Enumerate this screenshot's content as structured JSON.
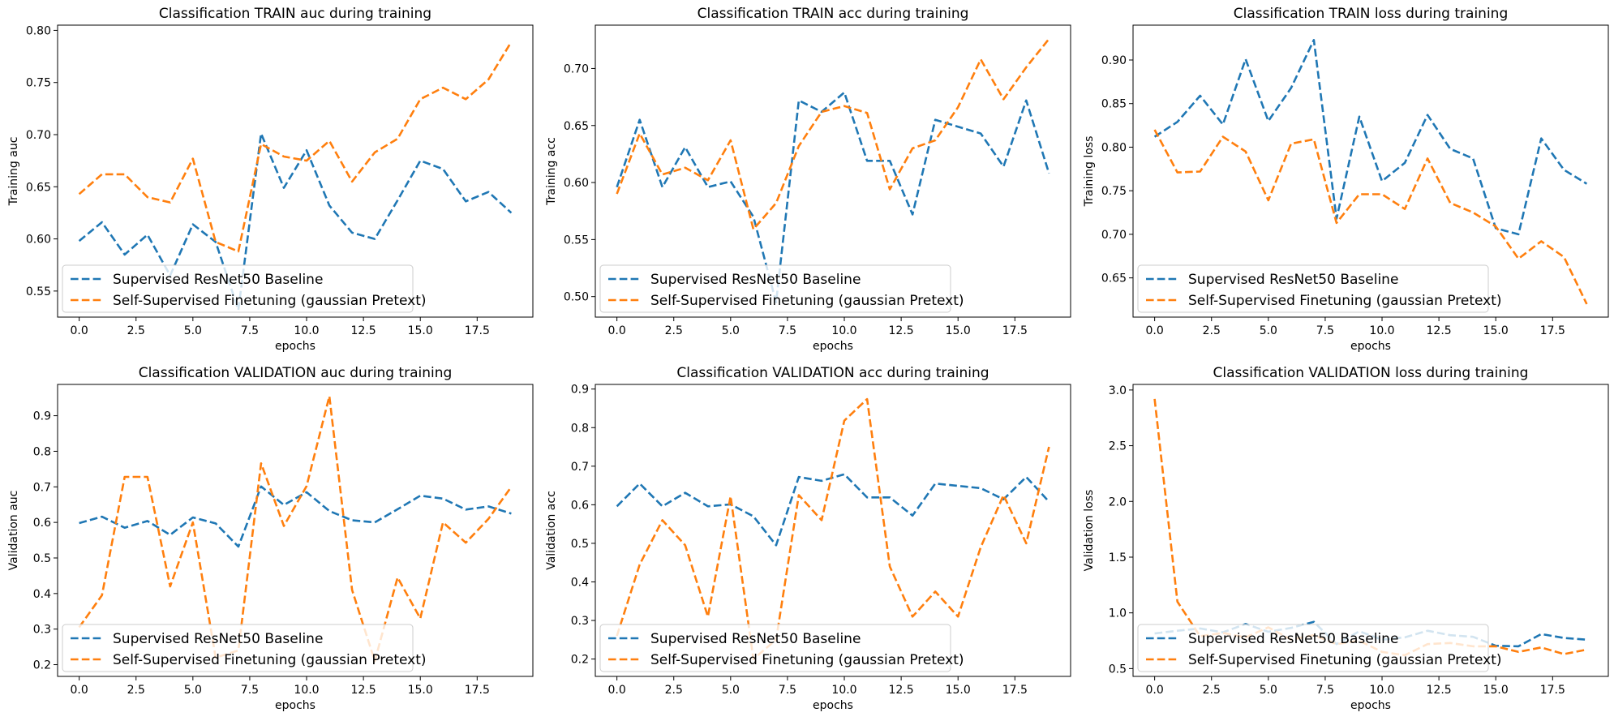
{
  "colors": {
    "baseline": "#1f77b4",
    "ssl": "#ff7f0e"
  },
  "legend": {
    "entries": [
      "Supervised ResNet50 Baseline",
      "Self-Supervised Finetuning (gaussian Pretext)"
    ],
    "placement": "lower-left"
  },
  "chart_data": [
    {
      "type": "line",
      "title": "Classification TRAIN auc during training",
      "xlabel": "epochs",
      "ylabel": "Training auc",
      "xlim": [
        -0.95,
        19.95
      ],
      "ylim": [
        0.525,
        0.805
      ],
      "xticks": [
        "0.0",
        "2.5",
        "5.0",
        "7.5",
        "10.0",
        "12.5",
        "15.0",
        "17.5"
      ],
      "xtick_values": [
        0,
        2.5,
        5,
        7.5,
        10,
        12.5,
        15,
        17.5
      ],
      "yticks": [
        "0.55",
        "0.60",
        "0.65",
        "0.70",
        "0.75",
        "0.80"
      ],
      "ytick_values": [
        0.55,
        0.6,
        0.65,
        0.7,
        0.75,
        0.8
      ],
      "x": [
        0,
        1,
        2,
        3,
        4,
        5,
        6,
        7,
        8,
        9,
        10,
        11,
        12,
        13,
        14,
        15,
        16,
        17,
        18,
        19
      ],
      "series": [
        {
          "name": "Supervised ResNet50 Baseline",
          "values": [
            0.598,
            0.616,
            0.585,
            0.604,
            0.565,
            0.614,
            0.597,
            0.532,
            0.701,
            0.649,
            0.685,
            0.632,
            0.606,
            0.6,
            0.637,
            0.675,
            0.667,
            0.636,
            0.645,
            0.625
          ]
        },
        {
          "name": "Self-Supervised Finetuning (gaussian Pretext)",
          "values": [
            0.643,
            0.662,
            0.662,
            0.64,
            0.635,
            0.677,
            0.597,
            0.588,
            0.691,
            0.679,
            0.675,
            0.694,
            0.655,
            0.683,
            0.696,
            0.734,
            0.745,
            0.734,
            0.753,
            0.789
          ]
        }
      ]
    },
    {
      "type": "line",
      "title": "Classification TRAIN acc during training",
      "xlabel": "epochs",
      "ylabel": "Training acc",
      "xlim": [
        -0.95,
        19.95
      ],
      "ylim": [
        0.482,
        0.738
      ],
      "xticks": [
        "0.0",
        "2.5",
        "5.0",
        "7.5",
        "10.0",
        "12.5",
        "15.0",
        "17.5"
      ],
      "xtick_values": [
        0,
        2.5,
        5,
        7.5,
        10,
        12.5,
        15,
        17.5
      ],
      "yticks": [
        "0.50",
        "0.55",
        "0.60",
        "0.65",
        "0.70"
      ],
      "ytick_values": [
        0.5,
        0.55,
        0.6,
        0.65,
        0.7
      ],
      "x": [
        0,
        1,
        2,
        3,
        4,
        5,
        6,
        7,
        8,
        9,
        10,
        11,
        12,
        13,
        14,
        15,
        16,
        17,
        18,
        19
      ],
      "series": [
        {
          "name": "Supervised ResNet50 Baseline",
          "values": [
            0.596,
            0.655,
            0.596,
            0.631,
            0.596,
            0.601,
            0.57,
            0.495,
            0.672,
            0.662,
            0.679,
            0.619,
            0.619,
            0.572,
            0.655,
            0.649,
            0.643,
            0.614,
            0.672,
            0.608
          ]
        },
        {
          "name": "Self-Supervised Finetuning (gaussian Pretext)",
          "values": [
            0.59,
            0.643,
            0.607,
            0.613,
            0.602,
            0.637,
            0.559,
            0.582,
            0.632,
            0.662,
            0.667,
            0.661,
            0.594,
            0.63,
            0.637,
            0.666,
            0.708,
            0.673,
            0.701,
            0.726
          ]
        }
      ]
    },
    {
      "type": "line",
      "title": "Classification TRAIN loss during training",
      "xlabel": "epochs",
      "ylabel": "Training loss",
      "xlim": [
        -0.95,
        19.95
      ],
      "ylim": [
        0.605,
        0.94
      ],
      "xticks": [
        "0.0",
        "2.5",
        "5.0",
        "7.5",
        "10.0",
        "12.5",
        "15.0",
        "17.5"
      ],
      "xtick_values": [
        0,
        2.5,
        5,
        7.5,
        10,
        12.5,
        15,
        17.5
      ],
      "yticks": [
        "0.65",
        "0.70",
        "0.75",
        "0.80",
        "0.85",
        "0.90"
      ],
      "ytick_values": [
        0.65,
        0.7,
        0.75,
        0.8,
        0.85,
        0.9
      ],
      "x": [
        0,
        1,
        2,
        3,
        4,
        5,
        6,
        7,
        8,
        9,
        10,
        11,
        12,
        13,
        14,
        15,
        16,
        17,
        18,
        19
      ],
      "series": [
        {
          "name": "Supervised ResNet50 Baseline",
          "values": [
            0.812,
            0.829,
            0.859,
            0.826,
            0.901,
            0.83,
            0.868,
            0.923,
            0.718,
            0.835,
            0.761,
            0.782,
            0.837,
            0.798,
            0.787,
            0.707,
            0.7,
            0.81,
            0.774,
            0.758
          ]
        },
        {
          "name": "Self-Supervised Finetuning (gaussian Pretext)",
          "values": [
            0.82,
            0.771,
            0.772,
            0.812,
            0.795,
            0.739,
            0.804,
            0.809,
            0.713,
            0.746,
            0.746,
            0.729,
            0.787,
            0.736,
            0.725,
            0.709,
            0.672,
            0.692,
            0.674,
            0.62
          ]
        }
      ]
    },
    {
      "type": "line",
      "title": "Classification VALIDATION auc during training",
      "xlabel": "epochs",
      "ylabel": "Validation auc",
      "xlim": [
        -0.95,
        19.95
      ],
      "ylim": [
        0.167,
        0.988
      ],
      "xticks": [
        "0.0",
        "2.5",
        "5.0",
        "7.5",
        "10.0",
        "12.5",
        "15.0",
        "17.5"
      ],
      "xtick_values": [
        0,
        2.5,
        5,
        7.5,
        10,
        12.5,
        15,
        17.5
      ],
      "yticks": [
        "0.2",
        "0.3",
        "0.4",
        "0.5",
        "0.6",
        "0.7",
        "0.8",
        "0.9"
      ],
      "ytick_values": [
        0.2,
        0.3,
        0.4,
        0.5,
        0.6,
        0.7,
        0.8,
        0.9
      ],
      "x": [
        0,
        1,
        2,
        3,
        4,
        5,
        6,
        7,
        8,
        9,
        10,
        11,
        12,
        13,
        14,
        15,
        16,
        17,
        18,
        19
      ],
      "series": [
        {
          "name": "Supervised ResNet50 Baseline",
          "values": [
            0.598,
            0.616,
            0.585,
            0.604,
            0.565,
            0.614,
            0.597,
            0.532,
            0.701,
            0.649,
            0.685,
            0.632,
            0.606,
            0.6,
            0.637,
            0.675,
            0.667,
            0.636,
            0.645,
            0.625
          ]
        },
        {
          "name": "Self-Supervised Finetuning (gaussian Pretext)",
          "values": [
            0.305,
            0.395,
            0.728,
            0.728,
            0.42,
            0.6,
            0.22,
            0.24,
            0.766,
            0.59,
            0.702,
            0.955,
            0.41,
            0.21,
            0.445,
            0.33,
            0.6,
            0.543,
            0.61,
            0.7
          ]
        }
      ]
    },
    {
      "type": "line",
      "title": "Classification VALIDATION acc during training",
      "xlabel": "epochs",
      "ylabel": "Validation acc",
      "xlim": [
        -0.95,
        19.95
      ],
      "ylim": [
        0.155,
        0.912
      ],
      "xticks": [
        "0.0",
        "2.5",
        "5.0",
        "7.5",
        "10.0",
        "12.5",
        "15.0",
        "17.5"
      ],
      "xtick_values": [
        0,
        2.5,
        5,
        7.5,
        10,
        12.5,
        15,
        17.5
      ],
      "yticks": [
        "0.2",
        "0.3",
        "0.4",
        "0.5",
        "0.6",
        "0.7",
        "0.8",
        "0.9"
      ],
      "ytick_values": [
        0.2,
        0.3,
        0.4,
        0.5,
        0.6,
        0.7,
        0.8,
        0.9
      ],
      "x": [
        0,
        1,
        2,
        3,
        4,
        5,
        6,
        7,
        8,
        9,
        10,
        11,
        12,
        13,
        14,
        15,
        16,
        17,
        18,
        19
      ],
      "series": [
        {
          "name": "Supervised ResNet50 Baseline",
          "values": [
            0.596,
            0.655,
            0.596,
            0.631,
            0.596,
            0.601,
            0.57,
            0.495,
            0.672,
            0.662,
            0.679,
            0.619,
            0.619,
            0.572,
            0.655,
            0.649,
            0.643,
            0.614,
            0.672,
            0.608
          ]
        },
        {
          "name": "Self-Supervised Finetuning (gaussian Pretext)",
          "values": [
            0.26,
            0.445,
            0.56,
            0.495,
            0.31,
            0.622,
            0.2,
            0.25,
            0.625,
            0.56,
            0.818,
            0.874,
            0.44,
            0.31,
            0.375,
            0.31,
            0.49,
            0.625,
            0.5,
            0.75
          ]
        }
      ]
    },
    {
      "type": "line",
      "title": "Classification VALIDATION loss during training",
      "xlabel": "epochs",
      "ylabel": "Validation loss",
      "xlim": [
        -0.95,
        19.95
      ],
      "ylim": [
        0.43,
        3.05
      ],
      "xticks": [
        "0.0",
        "2.5",
        "5.0",
        "7.5",
        "10.0",
        "12.5",
        "15.0",
        "17.5"
      ],
      "xtick_values": [
        0,
        2.5,
        5,
        7.5,
        10,
        12.5,
        15,
        17.5
      ],
      "yticks": [
        "0.5",
        "1.0",
        "1.5",
        "2.0",
        "2.5",
        "3.0"
      ],
      "ytick_values": [
        0.5,
        1.0,
        1.5,
        2.0,
        2.5,
        3.0
      ],
      "x": [
        0,
        1,
        2,
        3,
        4,
        5,
        6,
        7,
        8,
        9,
        10,
        11,
        12,
        13,
        14,
        15,
        16,
        17,
        18,
        19
      ],
      "series": [
        {
          "name": "Supervised ResNet50 Baseline",
          "values": [
            0.815,
            0.84,
            0.86,
            0.825,
            0.9,
            0.83,
            0.865,
            0.92,
            0.72,
            0.835,
            0.76,
            0.78,
            0.84,
            0.8,
            0.785,
            0.705,
            0.7,
            0.81,
            0.775,
            0.76
          ]
        },
        {
          "name": "Self-Supervised Finetuning (gaussian Pretext)",
          "values": [
            2.92,
            1.1,
            0.79,
            0.82,
            0.78,
            0.87,
            0.76,
            0.8,
            0.72,
            0.75,
            0.65,
            0.62,
            0.72,
            0.73,
            0.7,
            0.7,
            0.65,
            0.69,
            0.63,
            0.67
          ]
        }
      ]
    }
  ]
}
